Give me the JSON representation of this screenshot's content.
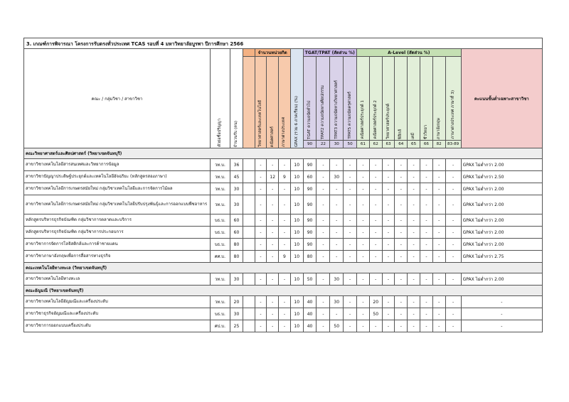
{
  "title": "3. เกณฑ์การพิจารณา โครงการรับตรงทั่วประเทศ TCAS รอบที่ 4 มหาวิทยาลัยบูรพา ปีการศึกษา 2566",
  "headers": {
    "program": "คณะ / กลุ่มวิชา / สาขาวิชา",
    "degree_abbr": "ตัวย่อชื่อปริญญา",
    "seats": "จำนวนรับ (คน)",
    "gpax": "GPAX (รวม 6 ภาคเรียน) (%)",
    "group_vocational": "จำนวนหน่วยกิต",
    "vocational_cols": [
      "วิทยาศาสตร์และเทคโนโลยี",
      "คณิตศาสตร์",
      "ภาษาต่างประเทศ"
    ],
    "group_tgat": "TGAT/TPAT (สัดส่วน %)",
    "tgat_cols": [
      "TGAT ความถนัดทั่วไป",
      "TPAT2 ความถนัดทางศิลปกรรม",
      "TPAT3 ความถนัดทางวิทยาศาสตร์",
      "TPAT5 ความถนัดครุศาสตร์"
    ],
    "tgat_codes": [
      "90",
      "22",
      "30",
      "50"
    ],
    "group_alevel": "A-Level (สัดส่วน %)",
    "alevel_cols": [
      "คณิตศาสตร์ประยุกต์ 1",
      "คณิตศาสตร์ประยุกต์ 2",
      "วิทยาศาสตร์ประยุกต์",
      "ฟิสิกส์",
      "เคมี",
      "ชีววิทยา",
      "ภาษาอังกฤษ",
      "ภาษาต่างประเทศ ภาษาที่ 3)"
    ],
    "alevel_codes": [
      "61",
      "62",
      "63",
      "64",
      "65",
      "66",
      "82",
      "83-89"
    ],
    "special": "คะแนนขั้นต่ำเฉพาะสาขาวิชา"
  },
  "sections": [
    {
      "faculty": "คณะวิทยาศาสตร์และศิลปศาสตร์ (วิทยาเขตจันทบุรี)",
      "rows": [
        {
          "program": "สาขาวิชาเทคโนโลยีสารสนเทศและวิทยาการข้อมูล",
          "deg": "วท.บ.",
          "seats": "36",
          "v": [
            "-",
            "-",
            "-"
          ],
          "gpax": "10",
          "t": [
            "90",
            "-",
            "-",
            "-"
          ],
          "a": [
            "-",
            "-",
            "-",
            "-",
            "-",
            "-",
            "-",
            "-"
          ],
          "special": "GPAX ไม่ต่ำกว่า 2.00"
        },
        {
          "program": "สาขาวิชาปัญญาประดิษฐ์ประยุกต์และเทคโนโลยีอัจฉริยะ (หลักสูตรสองภาษา)",
          "deg": "วท.บ.",
          "seats": "45",
          "v": [
            "-",
            "12",
            "9"
          ],
          "gpax": "10",
          "t": [
            "60",
            "-",
            "30",
            "-"
          ],
          "a": [
            "-",
            "-",
            "-",
            "-",
            "-",
            "-",
            "-",
            "-"
          ],
          "special": "GPAX ไม่ต่ำกว่า 2.50"
        },
        {
          "program": "สาขาวิชาเทคโนโลยีการเกษตรสมัยใหม่ กลุ่มวิชาเทคโนโลยีและการจัดการไม้ผล",
          "deg": "วท.บ.",
          "seats": "30",
          "v": [
            "-",
            "-",
            "-"
          ],
          "gpax": "10",
          "t": [
            "90",
            "-",
            "-",
            "-"
          ],
          "a": [
            "-",
            "-",
            "-",
            "-",
            "-",
            "-",
            "-",
            "-"
          ],
          "special": "GPAX ไม่ต่ำกว่า 2.00"
        },
        {
          "program": "สาขาวิชาเทคโนโลยีการเกษตรสมัยใหม่ กลุ่มวิชาเทคโนโลยีปรับปรุงพันธุ์และการออกแบบพืชอาหาร",
          "deg": "วท.บ.",
          "seats": "30",
          "v": [
            "-",
            "-",
            "-"
          ],
          "gpax": "10",
          "t": [
            "90",
            "-",
            "-",
            "-"
          ],
          "a": [
            "-",
            "-",
            "-",
            "-",
            "-",
            "-",
            "-",
            "-"
          ],
          "special": "GPAX ไม่ต่ำกว่า 2.00",
          "tall": true
        },
        {
          "program": "หลักสูตรบริหารธุรกิจบัณฑิต กลุ่มวิชาการตลาดและบริการ",
          "deg": "บธ.บ.",
          "seats": "60",
          "v": [
            "-",
            "-",
            "-"
          ],
          "gpax": "10",
          "t": [
            "90",
            "-",
            "-",
            "-"
          ],
          "a": [
            "-",
            "-",
            "-",
            "-",
            "-",
            "-",
            "-",
            "-"
          ],
          "special": "GPAX ไม่ต่ำกว่า 2.00"
        },
        {
          "program": "หลักสูตรบริหารธุรกิจบัณฑิต กลุ่มวิชาการประกอบการ",
          "deg": "บธ.บ.",
          "seats": "60",
          "v": [
            "-",
            "-",
            "-"
          ],
          "gpax": "10",
          "t": [
            "90",
            "-",
            "-",
            "-"
          ],
          "a": [
            "-",
            "-",
            "-",
            "-",
            "-",
            "-",
            "-",
            "-"
          ],
          "special": "GPAX ไม่ต่ำกว่า 2.00"
        },
        {
          "program": "สาขาวิชาการจัดการโลจิสติกส์และการค้าชายแดน",
          "deg": "บธ.บ.",
          "seats": "80",
          "v": [
            "-",
            "-",
            "-"
          ],
          "gpax": "10",
          "t": [
            "90",
            "-",
            "-",
            "-"
          ],
          "a": [
            "-",
            "-",
            "-",
            "-",
            "-",
            "-",
            "-",
            "-"
          ],
          "special": "GPAX ไม่ต่ำกว่า 2.00"
        },
        {
          "program": "สาขาวิชาภาษาอังกฤษเพื่อการสื่อสารทางธุรกิจ",
          "deg": "ศศ.บ.",
          "seats": "80",
          "v": [
            "-",
            "-",
            "9"
          ],
          "gpax": "10",
          "t": [
            "80",
            "-",
            "-",
            "-"
          ],
          "a": [
            "-",
            "-",
            "-",
            "-",
            "-",
            "-",
            "-",
            "-"
          ],
          "special": "GPAX ไม่ต่ำกว่า 2.75"
        }
      ]
    },
    {
      "faculty": "คณะเทคโนโลยีทางทะเล (วิทยาเขตจันทบุรี)",
      "rows": [
        {
          "program": "สาขาวิชาเทคโนโลยีทางทะเล",
          "deg": "วท.บ.",
          "seats": "30",
          "v": [
            "-",
            "-",
            "-"
          ],
          "gpax": "10",
          "t": [
            "50",
            "-",
            "30",
            "-"
          ],
          "a": [
            "-",
            "-",
            "-",
            "-",
            "-",
            "-",
            "-",
            "-"
          ],
          "special": "GPAX ไม่ต่ำกว่า 2.00"
        }
      ]
    },
    {
      "faculty": "คณะอัญมณี (วิทยาเขตจันทบุรี)",
      "rows": [
        {
          "program": "สาขาวิชาเทคโนโลยีอัญมณีและเครื่องประดับ",
          "deg": "วท.บ.",
          "seats": "20",
          "v": [
            "-",
            "-",
            "-"
          ],
          "gpax": "10",
          "t": [
            "40",
            "-",
            "30",
            "-"
          ],
          "a": [
            "-",
            "20",
            "-",
            "-",
            "-",
            "-",
            "-",
            "-"
          ],
          "special": "-"
        },
        {
          "program": "สาขาวิชาธุรกิจอัญมณีและเครื่องประดับ",
          "deg": "บธ.บ.",
          "seats": "30",
          "v": [
            "-",
            "-",
            "-"
          ],
          "gpax": "10",
          "t": [
            "40",
            "-",
            "-",
            "-"
          ],
          "a": [
            "-",
            "50",
            "-",
            "-",
            "-",
            "-",
            "-",
            "-"
          ],
          "special": "-"
        },
        {
          "program": "สาขาวิชาการออกแบบเครื่องประดับ",
          "deg": "ศป.บ.",
          "seats": "25",
          "v": [
            "-",
            "-",
            "-"
          ],
          "gpax": "10",
          "t": [
            "40",
            "-",
            "50",
            "-"
          ],
          "a": [
            "-",
            "-",
            "-",
            "-",
            "-",
            "-",
            "-",
            "-"
          ],
          "special": "-"
        }
      ]
    }
  ]
}
